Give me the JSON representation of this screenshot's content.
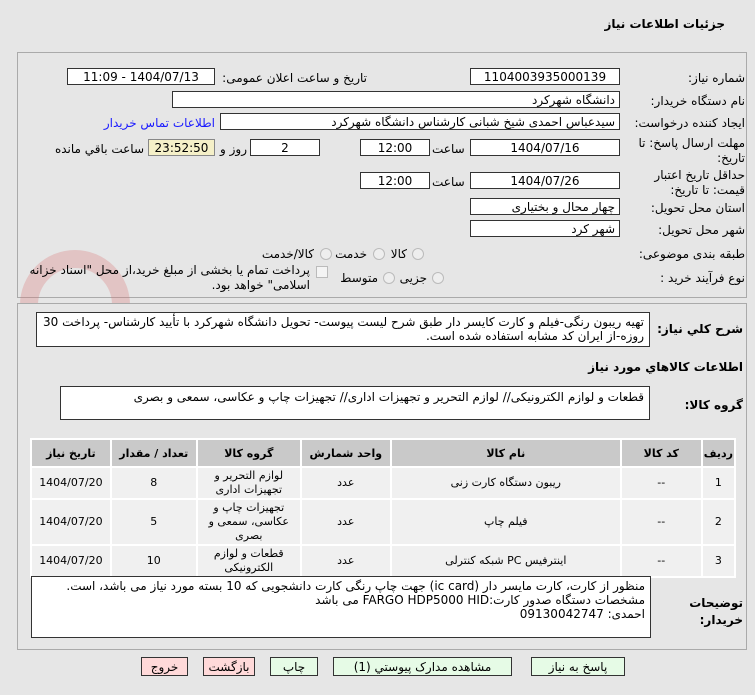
{
  "header": {
    "title": "جزئیات اطلاعات نیاز"
  },
  "watermark": "AriaTender.net",
  "form": {
    "need_number_label": "شماره نیاز:",
    "need_number": "1104003935000139",
    "announce_label": "تاریخ و ساعت اعلان عمومی:",
    "announce_value": "1404/07/13 - 11:09",
    "buyer_org_label": "نام دستگاه خریدار:",
    "buyer_org": "دانشگاه شهرکرد",
    "creator_label": "ایجاد کننده درخواست:",
    "creator": "سیدعباس احمدی شیخ شبانی کارشناس دانشگاه شهرکرد",
    "contact_link": "اطلاعات تماس خریدار",
    "deadline_label": "مهلت ارسال پاسخ: تا تاریخ:",
    "deadline_date": "1404/07/16",
    "time_label": "ساعت",
    "deadline_time": "12:00",
    "days": "2",
    "days_label": "روز و",
    "remaining": "23:52:50",
    "remaining_label": "ساعت باقي مانده",
    "validity_label": "حداقل تاریخ اعتبار قیمت: تا تاریخ:",
    "validity_date": "1404/07/26",
    "validity_time": "12:00",
    "province_label": "استان محل تحویل:",
    "province": "چهار محال و بختیاری",
    "city_label": "شهر محل تحویل:",
    "city": "شهر کرد",
    "category_label": "طبقه بندی موضوعی:",
    "category_options": [
      "کالا",
      "خدمت",
      "کالا/خدمت"
    ],
    "category_selected": "کالا",
    "process_label": "نوع فرآیند خرید :",
    "process_options": [
      "جزیی",
      "متوسط"
    ],
    "process_selected": "جزیی",
    "payment_note": "پرداخت تمام یا بخشی از مبلغ خرید،از محل \"اسناد خزانه اسلامی\" خواهد بود.",
    "description_label": "شرح کلي نياز:",
    "description": "تهیه ریبون رنگی-فیلم و کارت کایسر دار طبق شرح لیست پیوست- تحویل دانشگاه شهرکرد با تأیید کارشناس- پرداخت 30 روزه-از ایران کد مشابه استفاده شده است.",
    "goods_info_title": "اطلاعات كالاهاي مورد نياز",
    "goods_group_label": "گروه کالا:",
    "goods_group": "قطعات و لوازم الکترونیکی// لوازم التحریر و تجهیزات اداری// تجهیزات چاپ و عکاسی، سمعی و بصری"
  },
  "table": {
    "headers": [
      "ردیف",
      "کد کالا",
      "نام کالا",
      "واحد شمارش",
      "گروه کالا",
      "تعداد / مقدار",
      "تاریخ نیاز"
    ],
    "rows": [
      [
        "1",
        "--",
        "ریبون دستگاه کارت زنی",
        "عدد",
        "لوازم التحریر و تجهیزات اداری",
        "8",
        "1404/07/20"
      ],
      [
        "2",
        "--",
        "فیلم چاپ",
        "عدد",
        "تجهیزات چاپ و عکاسی، سمعی و بصری",
        "5",
        "1404/07/20"
      ],
      [
        "3",
        "--",
        "اینترفیس PC شبکه کنترلی",
        "عدد",
        "قطعات و لوازم الکترونیکی",
        "10",
        "1404/07/20"
      ]
    ]
  },
  "notes": {
    "label": "توضیحات خریدار:",
    "lines": [
      "منظور از کارت، کارت مایسر دار  (ic card) جهت چاپ رنگی کارت دانشجویی که 10 بسته مورد نیاز می باشد،  است.",
      "مشخصات دستگاه صدور کارت:FARGO HDP5000 HID می باشد",
      "احمدی: 09130042747"
    ]
  },
  "buttons": {
    "reply": "پاسخ به نیاز",
    "attachments": "مشاهده مدارک پیوستي (1)",
    "print": "چاپ",
    "back": "بازگشت",
    "exit": "خروج"
  }
}
